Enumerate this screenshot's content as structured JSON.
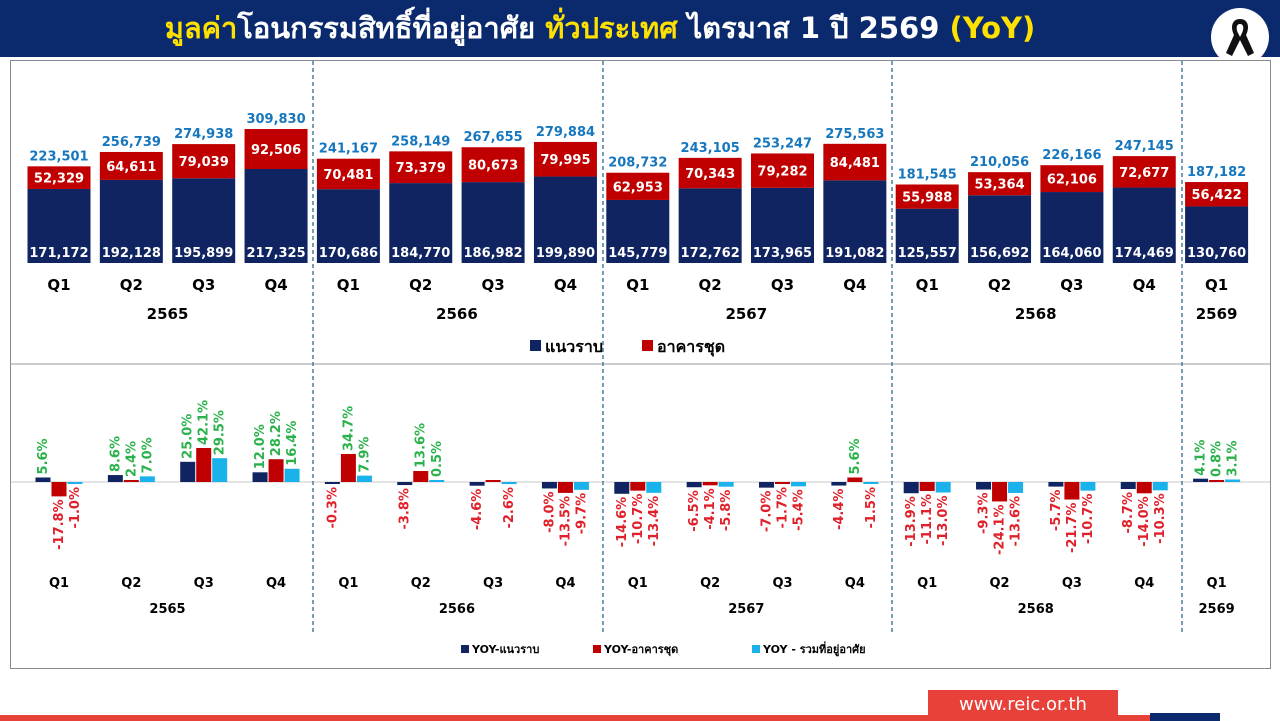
{
  "header": {
    "title_part1": "มูลค่า",
    "title_part2": "โอนกรรมสิทธิ์ที่อยู่อาศัย ",
    "title_part3": "ทั่วประเทศ",
    "title_part4": " ไตรมาส 1 ปี 2569 ",
    "title_part5": "(YoY)",
    "ribbon_icon": "black-mourning-ribbon-icon"
  },
  "footer": {
    "url": "www.reic.or.th"
  },
  "colors": {
    "navy": "#0b2a6e",
    "bar_navy": "#0f2461",
    "bar_red": "#c00000",
    "bar_cyan": "#1ab2ea",
    "total_label": "#1677bf",
    "pos_label": "#2bb24c",
    "neg_label": "#e0202a",
    "accent_red": "#e8413a",
    "divider": "#2d6b8c"
  },
  "chart_data": [
    {
      "type": "bar",
      "stacked": true,
      "quarters": [
        "Q1",
        "Q2",
        "Q3",
        "Q4",
        "Q1",
        "Q2",
        "Q3",
        "Q4",
        "Q1",
        "Q2",
        "Q3",
        "Q4",
        "Q1",
        "Q2",
        "Q3",
        "Q4",
        "Q1"
      ],
      "years": [
        {
          "label": "2565",
          "count": 4
        },
        {
          "label": "2566",
          "count": 4
        },
        {
          "label": "2567",
          "count": 4
        },
        {
          "label": "2568",
          "count": 4
        },
        {
          "label": "2569",
          "count": 1
        }
      ],
      "series": [
        {
          "name": "แนวราบ",
          "values": [
            171172,
            192128,
            195899,
            217325,
            170686,
            184770,
            186982,
            199890,
            145779,
            172762,
            173965,
            191082,
            125557,
            156692,
            164060,
            174469,
            130760
          ]
        },
        {
          "name": "อาคารชุด",
          "values": [
            52329,
            64611,
            79039,
            92506,
            70481,
            73379,
            80673,
            79995,
            62953,
            70343,
            79282,
            84481,
            55988,
            53364,
            62106,
            72677,
            56422
          ]
        }
      ],
      "totals": [
        223501,
        256739,
        274938,
        309830,
        241167,
        258149,
        267655,
        279884,
        208732,
        243105,
        253247,
        275563,
        181545,
        210056,
        226166,
        247145,
        187182
      ],
      "value_labels": {
        "low": [
          "171,172",
          "192,128",
          "195,899",
          "217,325",
          "170,686",
          "184,770",
          "186,982",
          "199,890",
          "145,779",
          "172,762",
          "173,965",
          "191,082",
          "125,557",
          "156,692",
          "164,060",
          "174,469",
          "130,760"
        ],
        "high": [
          "52,329",
          "64,611",
          "79,039",
          "92,506",
          "70,481",
          "73,379",
          "80,673",
          "79,995",
          "62,953",
          "70,343",
          "79,282",
          "84,481",
          "55,988",
          "53,364",
          "62,106",
          "72,677",
          "56,422"
        ],
        "total": [
          "223,501",
          "256,739",
          "274,938",
          "309,830",
          "241,167",
          "258,149",
          "267,655",
          "279,884",
          "208,732",
          "243,105",
          "253,247",
          "275,563",
          "181,545",
          "210,056",
          "226,166",
          "247,145",
          "187,182"
        ]
      },
      "legend_position": "bottom-center",
      "grid": false
    },
    {
      "type": "bar",
      "quarters": [
        "Q1",
        "Q2",
        "Q3",
        "Q4",
        "Q1",
        "Q2",
        "Q3",
        "Q4",
        "Q1",
        "Q2",
        "Q3",
        "Q4",
        "Q1",
        "Q2",
        "Q3",
        "Q4",
        "Q1"
      ],
      "years": [
        {
          "label": "2565",
          "count": 4
        },
        {
          "label": "2566",
          "count": 4
        },
        {
          "label": "2567",
          "count": 4
        },
        {
          "label": "2568",
          "count": 4
        },
        {
          "label": "2569",
          "count": 1
        }
      ],
      "series": [
        {
          "name": "YOY-แนวราบ",
          "values": [
            5.6,
            8.6,
            25.0,
            12.0,
            -0.3,
            -3.8,
            -4.6,
            -8.0,
            -14.6,
            -6.5,
            -7.0,
            -4.4,
            -13.9,
            -9.3,
            -5.7,
            -8.7,
            4.1
          ]
        },
        {
          "name": "YOY-อาคารชุด",
          "values": [
            -17.8,
            2.4,
            42.1,
            28.2,
            34.7,
            13.6,
            2.1,
            -13.5,
            -10.7,
            -4.1,
            -1.7,
            5.6,
            -11.1,
            -24.1,
            -21.7,
            -14.0,
            0.8
          ]
        },
        {
          "name": "YOY - รวมที่อยู่อาศัย",
          "values": [
            -1.0,
            7.0,
            29.5,
            16.4,
            7.9,
            0.5,
            -2.6,
            -9.7,
            -13.4,
            -5.8,
            -5.4,
            -1.5,
            -13.0,
            -13.6,
            -10.7,
            -10.3,
            3.1
          ]
        }
      ],
      "value_labels": [
        [
          "5.6%",
          "8.6%",
          "25.0%",
          "12.0%",
          "-0.3%",
          "-3.8%",
          "-4.6%",
          "-8.0%",
          "-14.6%",
          "-6.5%",
          "-7.0%",
          "-4.4%",
          "-13.9%",
          "-9.3%",
          "-5.7%",
          "-8.7%",
          "4.1%"
        ],
        [
          "-17.8%",
          "2.4%",
          "42.1%",
          "28.2%",
          "34.7%",
          "13.6%",
          "2.1%",
          "-13.5%",
          "-10.7%",
          "-4.1%",
          "-1.7%",
          "5.6%",
          "-11.1%",
          "-24.1%",
          "-21.7%",
          "-14.0%",
          "0.8%"
        ],
        [
          "-1.0%",
          "7.0%",
          "29.5%",
          "16.4%",
          "7.9%",
          "0.5%",
          "-2.6%",
          "-9.7%",
          "-13.4%",
          "-5.8%",
          "-5.4%",
          "-1.5%",
          "-13.0%",
          "-13.6%",
          "-10.7%",
          "-10.3%",
          "3.1%"
        ]
      ],
      "visible_labels": [
        [
          true,
          true,
          true,
          true,
          true,
          true,
          true,
          true,
          true,
          true,
          true,
          true,
          true,
          true,
          true,
          true,
          true
        ],
        [
          true,
          true,
          true,
          true,
          true,
          true,
          false,
          true,
          true,
          true,
          true,
          true,
          true,
          true,
          true,
          true,
          true
        ],
        [
          true,
          true,
          true,
          true,
          true,
          true,
          true,
          true,
          true,
          true,
          true,
          true,
          true,
          true,
          true,
          true,
          true
        ]
      ],
      "legend_position": "bottom-center",
      "grid": false
    }
  ]
}
